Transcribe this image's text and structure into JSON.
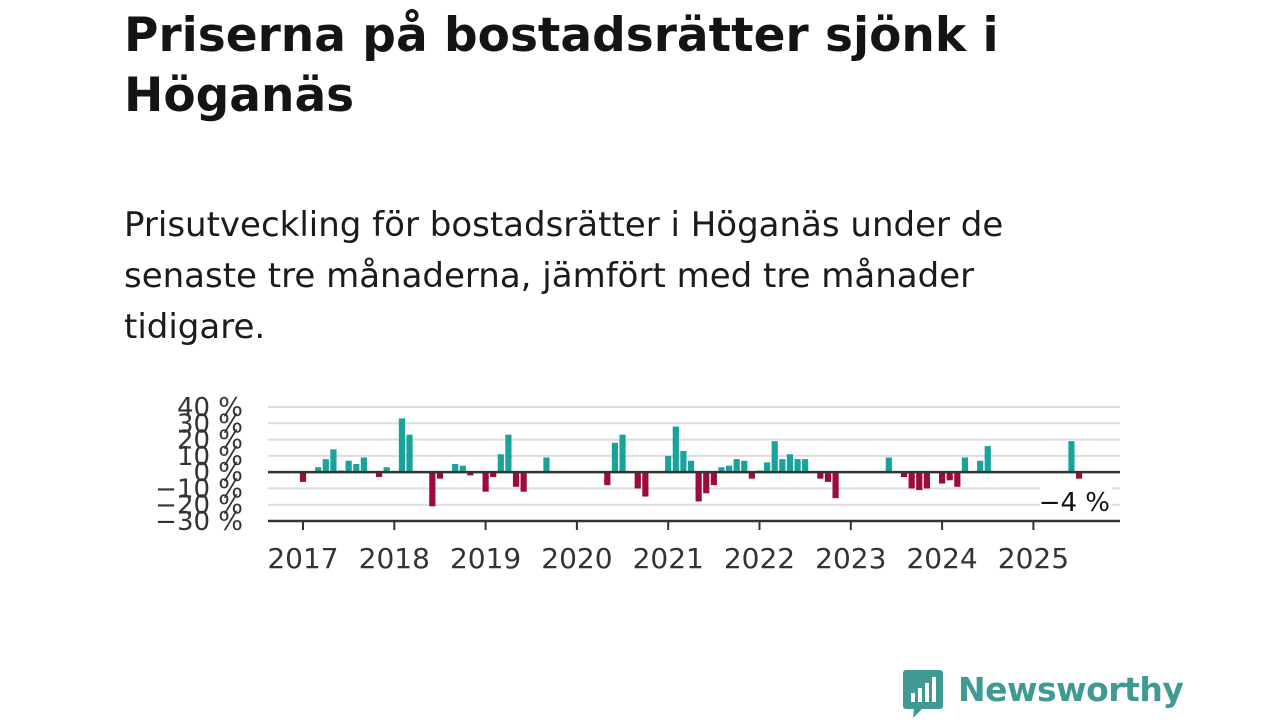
{
  "title": "Priserna på bostadsrätter sjönk i Höganäs",
  "subtitle": "Prisutveckling för bostadsrätter i Höganäs under de senaste tre månaderna, jämfört med tre månader tidigare.",
  "brand": {
    "name": "Newsworthy",
    "icon": "newsworthy-logo-icon",
    "color": "#3e9a92"
  },
  "colors": {
    "positive": "#1aa39a",
    "negative": "#9b0c3d",
    "grid": "#dddddd",
    "axis": "#333333"
  },
  "chart_data": {
    "type": "bar",
    "title": "",
    "xlabel": "",
    "ylabel": "",
    "ylim": [
      -30,
      40
    ],
    "y_ticks": [
      {
        "value": 40,
        "label": "40 %"
      },
      {
        "value": 30,
        "label": "30 %"
      },
      {
        "value": 20,
        "label": "20 %"
      },
      {
        "value": 10,
        "label": "10 %"
      },
      {
        "value": 0,
        "label": "0 %"
      },
      {
        "value": -10,
        "label": "−10 %"
      },
      {
        "value": -20,
        "label": "−20 %"
      },
      {
        "value": -30,
        "label": "−30 %"
      }
    ],
    "x_ticks": [
      "2017",
      "2018",
      "2019",
      "2020",
      "2021",
      "2022",
      "2023",
      "2024",
      "2025"
    ],
    "grid": true,
    "last_value_label": "−4 %",
    "series": [
      {
        "values": [
          {
            "x": "2017-01",
            "y": -6
          },
          {
            "x": "2017-03",
            "y": 3
          },
          {
            "x": "2017-04",
            "y": 8
          },
          {
            "x": "2017-05",
            "y": 14
          },
          {
            "x": "2017-06",
            "y": 1
          },
          {
            "x": "2017-07",
            "y": 7
          },
          {
            "x": "2017-08",
            "y": 5
          },
          {
            "x": "2017-09",
            "y": 9
          },
          {
            "x": "2017-11",
            "y": -3
          },
          {
            "x": "2017-12",
            "y": 3
          },
          {
            "x": "2018-02",
            "y": 33
          },
          {
            "x": "2018-03",
            "y": 23
          },
          {
            "x": "2018-06",
            "y": -21
          },
          {
            "x": "2018-07",
            "y": -4
          },
          {
            "x": "2018-09",
            "y": 5
          },
          {
            "x": "2018-10",
            "y": 4
          },
          {
            "x": "2018-11",
            "y": -2
          },
          {
            "x": "2019-01",
            "y": -12
          },
          {
            "x": "2019-02",
            "y": -3
          },
          {
            "x": "2019-03",
            "y": 11
          },
          {
            "x": "2019-04",
            "y": 23
          },
          {
            "x": "2019-05",
            "y": -9
          },
          {
            "x": "2019-06",
            "y": -12
          },
          {
            "x": "2019-09",
            "y": 9
          },
          {
            "x": "2020-05",
            "y": -8
          },
          {
            "x": "2020-06",
            "y": 18
          },
          {
            "x": "2020-07",
            "y": 23
          },
          {
            "x": "2020-09",
            "y": -10
          },
          {
            "x": "2020-10",
            "y": -15
          },
          {
            "x": "2021-01",
            "y": 10
          },
          {
            "x": "2021-02",
            "y": 28
          },
          {
            "x": "2021-03",
            "y": 13
          },
          {
            "x": "2021-04",
            "y": 7
          },
          {
            "x": "2021-05",
            "y": -18
          },
          {
            "x": "2021-06",
            "y": -13
          },
          {
            "x": "2021-07",
            "y": -8
          },
          {
            "x": "2021-08",
            "y": 3
          },
          {
            "x": "2021-09",
            "y": 4
          },
          {
            "x": "2021-10",
            "y": 8
          },
          {
            "x": "2021-11",
            "y": 7
          },
          {
            "x": "2021-12",
            "y": -4
          },
          {
            "x": "2022-01",
            "y": 1
          },
          {
            "x": "2022-02",
            "y": 6
          },
          {
            "x": "2022-03",
            "y": 19
          },
          {
            "x": "2022-04",
            "y": 8
          },
          {
            "x": "2022-05",
            "y": 11
          },
          {
            "x": "2022-06",
            "y": 8
          },
          {
            "x": "2022-07",
            "y": 8
          },
          {
            "x": "2022-09",
            "y": -4
          },
          {
            "x": "2022-10",
            "y": -6
          },
          {
            "x": "2022-11",
            "y": -16
          },
          {
            "x": "2023-06",
            "y": 9
          },
          {
            "x": "2023-08",
            "y": -3
          },
          {
            "x": "2023-09",
            "y": -10
          },
          {
            "x": "2023-10",
            "y": -11
          },
          {
            "x": "2023-11",
            "y": -10
          },
          {
            "x": "2024-01",
            "y": -7
          },
          {
            "x": "2024-02",
            "y": -5
          },
          {
            "x": "2024-03",
            "y": -9
          },
          {
            "x": "2024-04",
            "y": 9
          },
          {
            "x": "2024-06",
            "y": 7
          },
          {
            "x": "2024-07",
            "y": 16
          },
          {
            "x": "2025-06",
            "y": 19
          },
          {
            "x": "2025-07",
            "y": -4
          }
        ]
      }
    ]
  }
}
